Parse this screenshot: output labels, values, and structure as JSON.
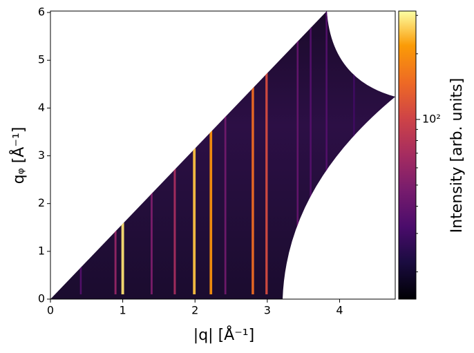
{
  "chart_data": {
    "type": "image",
    "xlabel": "|q| [Å⁻¹]",
    "ylabel": "qᵩ [Å⁻¹]",
    "clabel": "Intensity [arb. units]",
    "xlim": [
      0,
      4.77
    ],
    "xticks": [
      0,
      1,
      2,
      3,
      4
    ],
    "ylim": [
      0,
      6.03
    ],
    "yticks": [
      0,
      1,
      2,
      3,
      4,
      5,
      6
    ],
    "clim": [
      15,
      314
    ],
    "clog": true,
    "cticks": [
      {
        "value": 100,
        "label": "10²"
      }
    ],
    "cticks_minor": [
      20,
      30,
      40,
      50,
      60,
      70,
      80,
      90,
      200,
      300
    ],
    "colormap": "inferno",
    "rings": {
      "x": [
        0.42,
        0.9,
        1.0,
        1.4,
        1.72,
        1.99,
        2.22,
        2.42,
        2.8,
        2.99,
        3.42,
        3.6,
        3.82,
        4.2
      ],
      "values": [
        35,
        60,
        280,
        50,
        70,
        250,
        200,
        45,
        150,
        110,
        40,
        35,
        35,
        30
      ]
    }
  }
}
